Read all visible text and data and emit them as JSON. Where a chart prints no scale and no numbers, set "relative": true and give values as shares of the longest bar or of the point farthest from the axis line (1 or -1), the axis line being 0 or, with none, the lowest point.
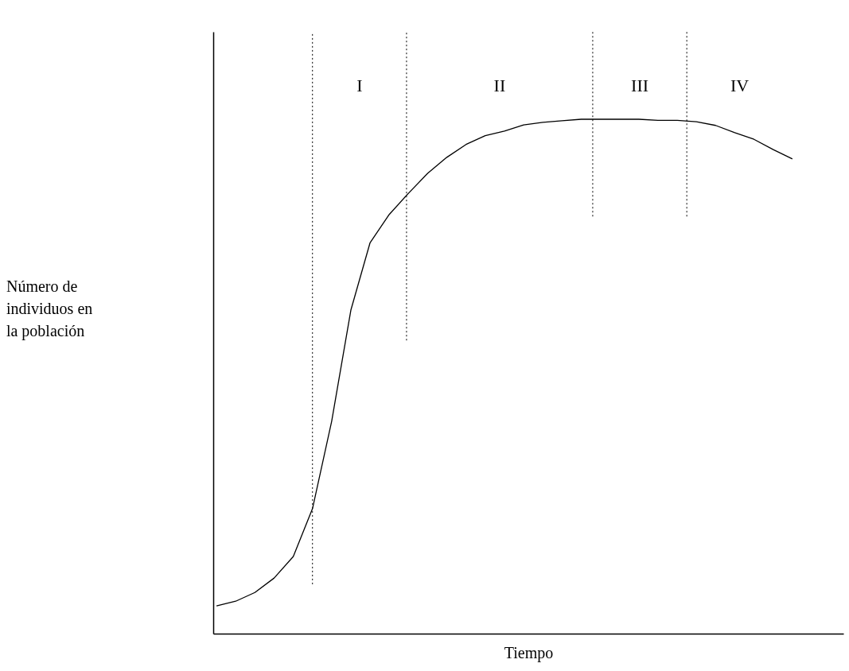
{
  "chart_data": {
    "type": "line",
    "relative": true,
    "xlabel": "Tiempo",
    "marker": "none",
    "line_style": "solid",
    "categories": [
      null,
      null,
      null,
      null,
      null,
      null,
      null,
      null,
      null,
      null,
      null,
      null,
      null,
      null,
      null,
      null,
      null,
      null,
      null,
      null,
      null,
      null,
      null,
      null,
      null,
      null,
      null,
      null,
      null,
      null,
      null
    ],
    "series": [
      {
        "color": "#000000",
        "values": [
          0.054,
          0.063,
          0.08,
          0.108,
          0.15,
          0.243,
          0.413,
          0.629,
          0.76,
          0.815,
          0.856,
          0.895,
          0.926,
          0.951,
          0.968,
          0.977,
          0.989,
          0.994,
          0.997,
          1,
          1,
          1,
          1,
          0.998,
          0.998,
          0.995,
          0.988,
          0.974,
          0.961,
          0.941,
          0.923
        ]
      }
    ],
    "annotations": [
      "I",
      "II",
      "III",
      "IV",
      "Número de individuos en la población"
    ]
  }
}
